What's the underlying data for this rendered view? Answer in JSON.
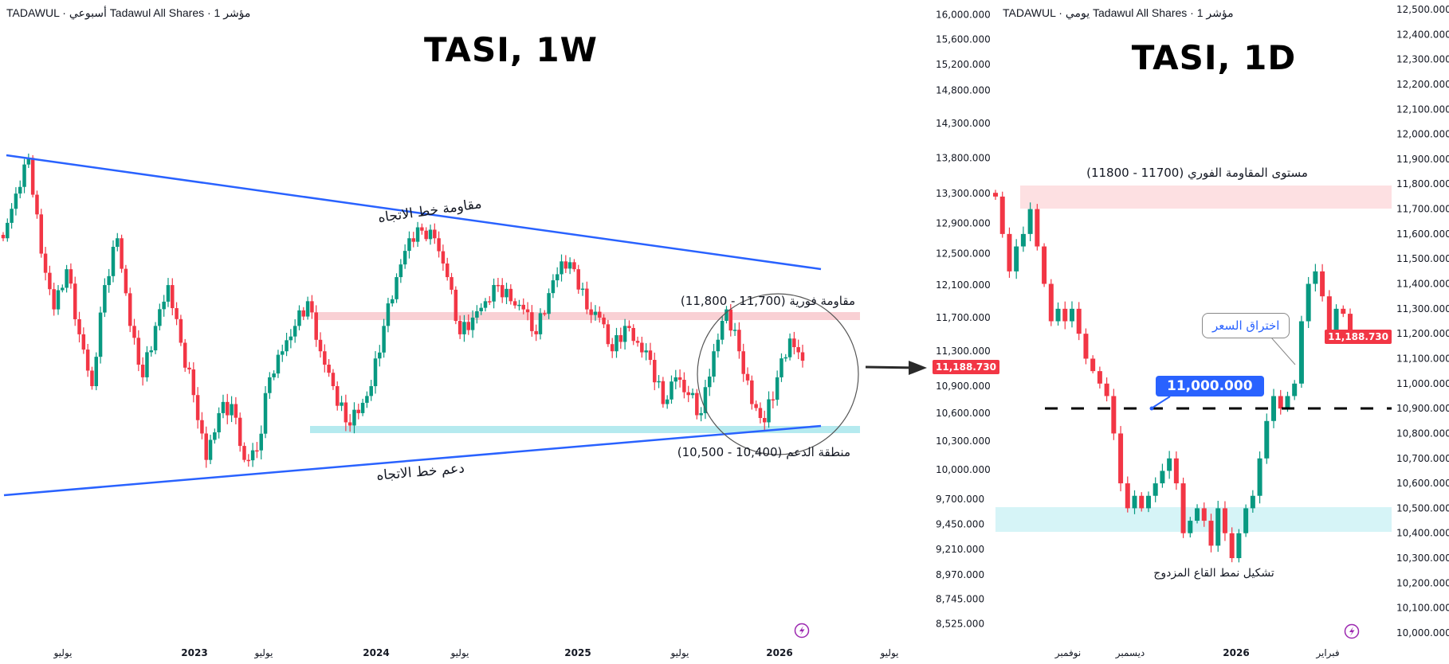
{
  "colors": {
    "up": "#089981",
    "down": "#f23645",
    "trend": "#2962ff",
    "resistance_zone": "#f8c8cc",
    "support_zone": "#a8e6ec",
    "price_badge": "#f23645",
    "label_blue": "#2962ff",
    "event_icon": "#9c27b0"
  },
  "left": {
    "header": "TADAWUL · أسبوعي Tadawul All Shares · 1 مؤشر",
    "title": "TASI, 1W",
    "price_badge": "11,188.730",
    "annotations": {
      "trend_resistance": "مقاومة خط الاتجاه",
      "trend_support": "دعم خط الاتجاه",
      "resistance_zone": "(11,800 - 11,700) مقاومة فورية",
      "support_zone": "(10,500 - 10,400) منطقة الدعم"
    },
    "icon": "lightning-event-icon"
  },
  "right": {
    "header": "TADAWUL · يومي Tadawul All Shares · 1 مؤشر",
    "title": "TASI, 1D",
    "price_badge": "11,188.730",
    "breakout_level_label": "11,000.000",
    "annotations": {
      "resistance": "مستوى المقاومة الفوري (11700 - 11800)",
      "breakout": "اختراق السعر",
      "double_bottom": "تشكيل نمط القاع المزدوج"
    },
    "icon": "lightning-event-icon"
  },
  "chart_data": [
    {
      "type": "candlestick",
      "title": "TASI, 1W",
      "scale": "log",
      "y_ticks": [
        "16,000.000",
        "15,600.000",
        "15,200.000",
        "14,800.000",
        "14,300.000",
        "13,800.000",
        "13,300.000",
        "12,900.000",
        "12,500.000",
        "12,100.000",
        "11,700.000",
        "11,300.000",
        "10,900.000",
        "10,600.000",
        "10,300.000",
        "10,000.000",
        "9,700.000",
        "9,450.000",
        "9,210.000",
        "8,970.000",
        "8,745.000",
        "8,525.000"
      ],
      "x_ticks": [
        "يوليو",
        "2023",
        "يوليو",
        "2024",
        "يوليو",
        "2025",
        "يوليو",
        "2026",
        "يوليو"
      ],
      "closes": [
        12700,
        13300,
        13800,
        12500,
        11800,
        12300,
        11500,
        10900,
        12100,
        12700,
        11600,
        11000,
        11600,
        12100,
        11400,
        10800,
        10100,
        10600,
        10700,
        10100,
        10200,
        11000,
        11300,
        11600,
        11900,
        11300,
        10900,
        10500,
        10600,
        10900,
        11600,
        12200,
        12700,
        12800,
        12700,
        12200,
        11500,
        11700,
        11900,
        12100,
        11900,
        11800,
        11500,
        12000,
        12400,
        12300,
        11800,
        11700,
        11300,
        11600,
        11400,
        11200,
        10700,
        11000,
        10800,
        10600,
        11300,
        11800,
        11300,
        10700,
        10500,
        11000,
        11450,
        11190
      ],
      "last": 11188.73,
      "resistance_zone": [
        11700,
        11800
      ],
      "support_zone": [
        10400,
        10500
      ]
    },
    {
      "type": "candlestick",
      "title": "TASI, 1D",
      "scale": "linear",
      "ylim": [
        10000,
        12500
      ],
      "y_ticks": [
        "12,500.000",
        "12,400.000",
        "12,300.000",
        "12,200.000",
        "12,100.000",
        "12,000.000",
        "11,900.000",
        "11,800.000",
        "11,700.000",
        "11,600.000",
        "11,500.000",
        "11,400.000",
        "11,300.000",
        "11,200.000",
        "11,100.000",
        "11,000.000",
        "10,900.000",
        "10,800.000",
        "10,700.000",
        "10,600.000",
        "10,500.000",
        "10,400.000",
        "10,300.000",
        "10,200.000",
        "10,100.000",
        "10,000.000"
      ],
      "x_ticks": [
        "نوفمبر",
        "ديسمبر",
        "2026",
        "فبراير"
      ],
      "closes": [
        11750,
        11600,
        11450,
        11550,
        11600,
        11700,
        11550,
        11400,
        11250,
        11300,
        11250,
        11300,
        11200,
        11100,
        11050,
        11000,
        10950,
        10800,
        10600,
        10500,
        10550,
        10500,
        10550,
        10600,
        10650,
        10700,
        10600,
        10400,
        10450,
        10500,
        10450,
        10350,
        10500,
        10400,
        10300,
        10400,
        10500,
        10550,
        10700,
        10850,
        10950,
        10900,
        10950,
        11000,
        11250,
        11400,
        11450,
        11350,
        11200,
        11300,
        11280,
        11190
      ],
      "last": 11188.73,
      "breakout_level": 11000,
      "resistance_zone": [
        11700,
        11800
      ],
      "support_zone": [
        10400,
        10500
      ]
    }
  ]
}
